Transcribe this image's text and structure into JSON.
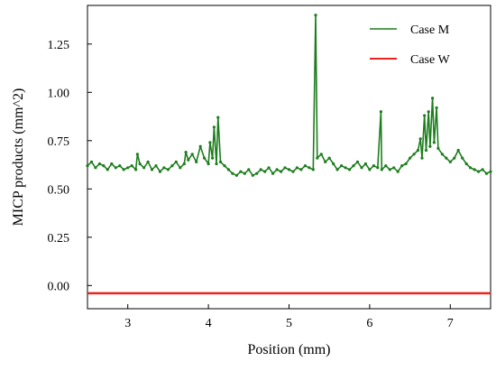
{
  "chart_data": {
    "type": "line",
    "title": "",
    "xlabel": "Position  (mm)",
    "ylabel": "MICP products (mm^2)",
    "xlim": [
      2.5,
      7.5
    ],
    "ylim": [
      -0.12,
      1.45
    ],
    "xticks": [
      3,
      4,
      5,
      6,
      7
    ],
    "yticks": [
      0.0,
      0.25,
      0.5,
      0.75,
      1.0,
      1.25
    ],
    "xtick_labels": [
      "3",
      "4",
      "5",
      "6",
      "7"
    ],
    "ytick_labels": [
      "0.00",
      "0.25",
      "0.50",
      "0.75",
      "1.00",
      "1.25"
    ],
    "grid": false,
    "legend_position": "top-right",
    "series": [
      {
        "name": "Case M",
        "color": "#1e7d1e",
        "x": [
          2.5,
          2.55,
          2.6,
          2.65,
          2.7,
          2.75,
          2.8,
          2.85,
          2.9,
          2.95,
          3.0,
          3.05,
          3.1,
          3.12,
          3.15,
          3.2,
          3.25,
          3.3,
          3.35,
          3.4,
          3.45,
          3.5,
          3.55,
          3.6,
          3.65,
          3.7,
          3.72,
          3.75,
          3.8,
          3.85,
          3.9,
          3.95,
          4.0,
          4.02,
          4.05,
          4.07,
          4.1,
          4.12,
          4.15,
          4.2,
          4.25,
          4.3,
          4.35,
          4.4,
          4.45,
          4.5,
          4.55,
          4.6,
          4.65,
          4.7,
          4.75,
          4.8,
          4.85,
          4.9,
          4.95,
          5.0,
          5.05,
          5.1,
          5.15,
          5.2,
          5.25,
          5.3,
          5.33,
          5.35,
          5.4,
          5.45,
          5.5,
          5.55,
          5.6,
          5.65,
          5.7,
          5.75,
          5.8,
          5.85,
          5.9,
          5.95,
          6.0,
          6.05,
          6.1,
          6.14,
          6.15,
          6.2,
          6.25,
          6.3,
          6.35,
          6.4,
          6.45,
          6.5,
          6.55,
          6.6,
          6.63,
          6.65,
          6.68,
          6.7,
          6.73,
          6.75,
          6.78,
          6.8,
          6.83,
          6.85,
          6.9,
          6.95,
          7.0,
          7.05,
          7.1,
          7.15,
          7.2,
          7.25,
          7.3,
          7.35,
          7.4,
          7.45,
          7.5
        ],
        "y": [
          0.62,
          0.64,
          0.61,
          0.63,
          0.62,
          0.6,
          0.63,
          0.61,
          0.62,
          0.6,
          0.61,
          0.62,
          0.6,
          0.68,
          0.63,
          0.61,
          0.64,
          0.6,
          0.62,
          0.59,
          0.61,
          0.6,
          0.62,
          0.64,
          0.61,
          0.63,
          0.69,
          0.65,
          0.68,
          0.64,
          0.72,
          0.66,
          0.63,
          0.74,
          0.66,
          0.82,
          0.63,
          0.87,
          0.64,
          0.62,
          0.6,
          0.58,
          0.57,
          0.59,
          0.58,
          0.6,
          0.57,
          0.58,
          0.6,
          0.59,
          0.61,
          0.58,
          0.6,
          0.59,
          0.61,
          0.6,
          0.59,
          0.61,
          0.6,
          0.62,
          0.61,
          0.6,
          1.4,
          0.66,
          0.68,
          0.64,
          0.66,
          0.63,
          0.6,
          0.62,
          0.61,
          0.6,
          0.62,
          0.64,
          0.61,
          0.63,
          0.6,
          0.62,
          0.61,
          0.9,
          0.6,
          0.62,
          0.6,
          0.61,
          0.59,
          0.62,
          0.63,
          0.66,
          0.68,
          0.7,
          0.76,
          0.66,
          0.88,
          0.7,
          0.9,
          0.72,
          0.97,
          0.74,
          0.92,
          0.71,
          0.68,
          0.66,
          0.64,
          0.66,
          0.7,
          0.66,
          0.63,
          0.61,
          0.6,
          0.59,
          0.6,
          0.58,
          0.59
        ]
      },
      {
        "name": "Case W",
        "color": "#e8241f",
        "x": [
          2.5,
          7.5
        ],
        "y": [
          -0.04,
          -0.04
        ]
      }
    ]
  }
}
